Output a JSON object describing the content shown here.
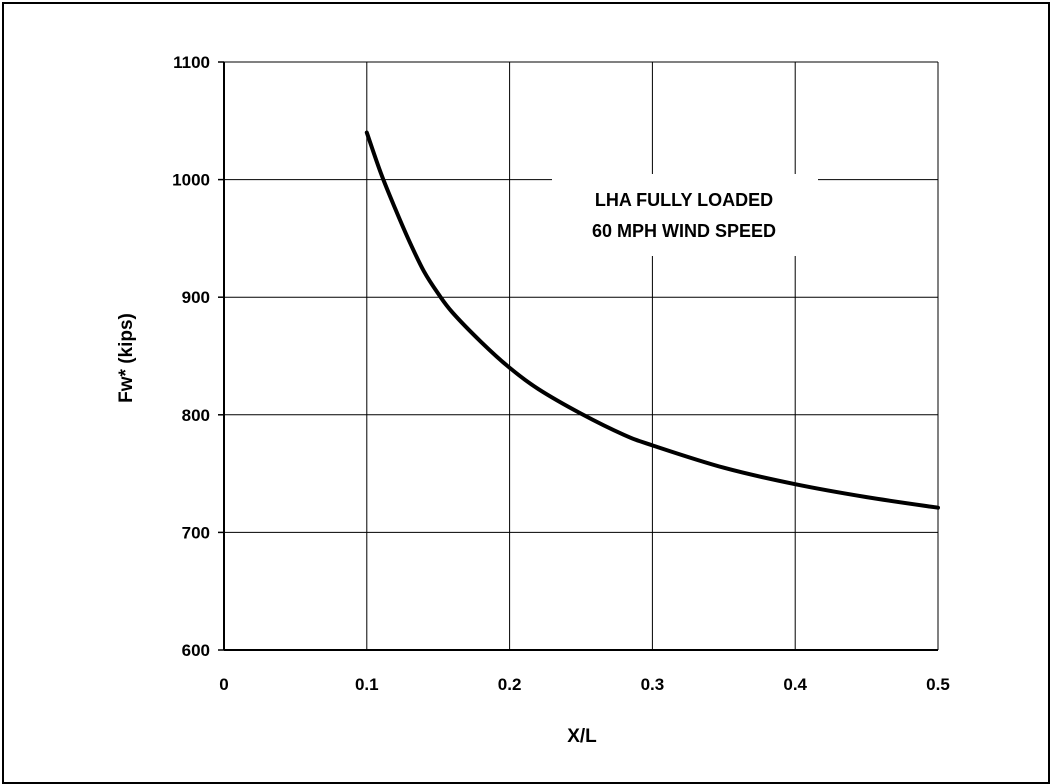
{
  "chart_data": {
    "type": "line",
    "title": "",
    "xlabel": "X/L",
    "ylabel": "Fw* (kips)",
    "xlim": [
      0,
      0.5
    ],
    "ylim": [
      600,
      1100
    ],
    "x_ticks": [
      "0",
      "0.1",
      "0.2",
      "0.3",
      "0.4",
      "0.5"
    ],
    "y_ticks": [
      "600",
      "700",
      "800",
      "900",
      "1000",
      "1100"
    ],
    "grid": true,
    "annotation": [
      "LHA FULLY LOADED",
      "60 MPH WIND SPEED"
    ],
    "series": [
      {
        "x": [
          0.1,
          0.11,
          0.12,
          0.13,
          0.14,
          0.15,
          0.16,
          0.18,
          0.2,
          0.22,
          0.25,
          0.28,
          0.3,
          0.35,
          0.4,
          0.45,
          0.5
        ],
        "y": [
          1040,
          1005,
          975,
          947,
          922,
          903,
          887,
          862,
          840,
          822,
          801,
          783,
          774,
          755,
          741,
          730,
          721
        ]
      }
    ],
    "colors": {
      "line": "#000000",
      "grid": "#000000",
      "background": "#ffffff"
    }
  }
}
